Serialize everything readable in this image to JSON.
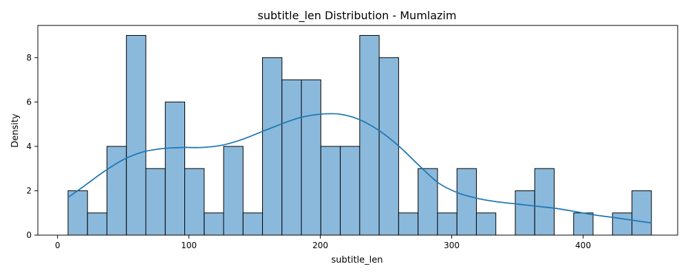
{
  "chart_data": {
    "type": "bar",
    "title": "subtitle_len Distribution - Mumlazim",
    "xlabel": "subtitle_len",
    "ylabel": "Density",
    "xlim": [
      -15,
      472
    ],
    "ylim": [
      0,
      9.45
    ],
    "xticks": [
      0,
      100,
      200,
      300,
      400
    ],
    "yticks": [
      0,
      2,
      4,
      6,
      8
    ],
    "bin_start": 8,
    "bin_width": 14.8,
    "counts": [
      2,
      1,
      4,
      9,
      3,
      6,
      3,
      1,
      4,
      1,
      8,
      7,
      7,
      4,
      4,
      9,
      8,
      1,
      3,
      1,
      3,
      1,
      0,
      2,
      3,
      0,
      1,
      0,
      1,
      2
    ],
    "kde": {
      "x": [
        8,
        20,
        35,
        50,
        65,
        80,
        95,
        110,
        125,
        140,
        155,
        170,
        185,
        200,
        215,
        230,
        245,
        260,
        275,
        290,
        305,
        320,
        335,
        350,
        365,
        380,
        395,
        410,
        425,
        440,
        452
      ],
      "y": [
        1.7,
        2.2,
        2.85,
        3.4,
        3.75,
        3.9,
        3.95,
        3.95,
        4.05,
        4.3,
        4.65,
        5.0,
        5.3,
        5.45,
        5.45,
        5.2,
        4.7,
        4.0,
        3.15,
        2.35,
        1.9,
        1.65,
        1.5,
        1.4,
        1.3,
        1.2,
        1.05,
        0.9,
        0.78,
        0.65,
        0.55
      ]
    },
    "colors": {
      "bar_fill": "#8ab9dc",
      "bar_edge": "#000000",
      "kde_line": "#1f77b4"
    },
    "grid": false,
    "legend": "none"
  }
}
